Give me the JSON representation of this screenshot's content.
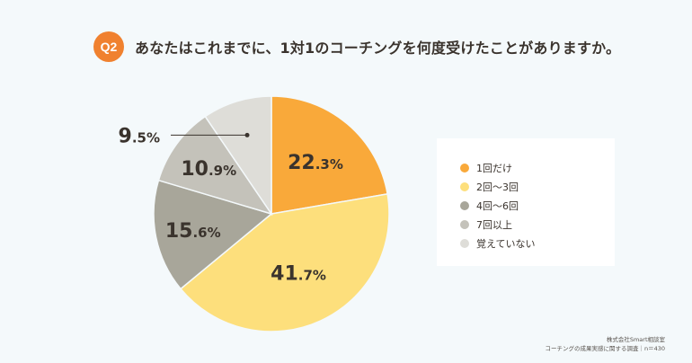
{
  "header": {
    "badge": "Q2",
    "question": "あなたはこれまでに、1対1のコーチングを何度受けたことがありますか。"
  },
  "chart_data": {
    "type": "pie",
    "title": "",
    "unit": "%",
    "start_angle_deg": 0,
    "direction": "clockwise",
    "slices": [
      {
        "name": "1回だけ",
        "value": 22.3,
        "label_int": "22",
        "label_dec": ".3%",
        "color": "#f9a93a",
        "label_color": "#3a332d"
      },
      {
        "name": "2回〜3回",
        "value": 41.7,
        "label_int": "41",
        "label_dec": ".7%",
        "color": "#fddf7c",
        "label_color": "#3a332d"
      },
      {
        "name": "4回〜6回",
        "value": 15.6,
        "label_int": "15",
        "label_dec": ".6%",
        "color": "#a8a69a",
        "label_color": "#3a332d"
      },
      {
        "name": "7回以上",
        "value": 10.9,
        "label_int": "10",
        "label_dec": ".9%",
        "color": "#c4c2ba",
        "label_color": "#3a332d"
      },
      {
        "name": "覚えていない",
        "value": 9.5,
        "label_int": "9",
        "label_dec": ".5%",
        "color": "#deddd8",
        "label_color": "#3a332d"
      }
    ],
    "legend": {
      "position": "right"
    }
  },
  "footer": {
    "line1": "株式会社Smart相談室",
    "line2": "コーチングの成果実感に関する調査｜n＝430"
  }
}
